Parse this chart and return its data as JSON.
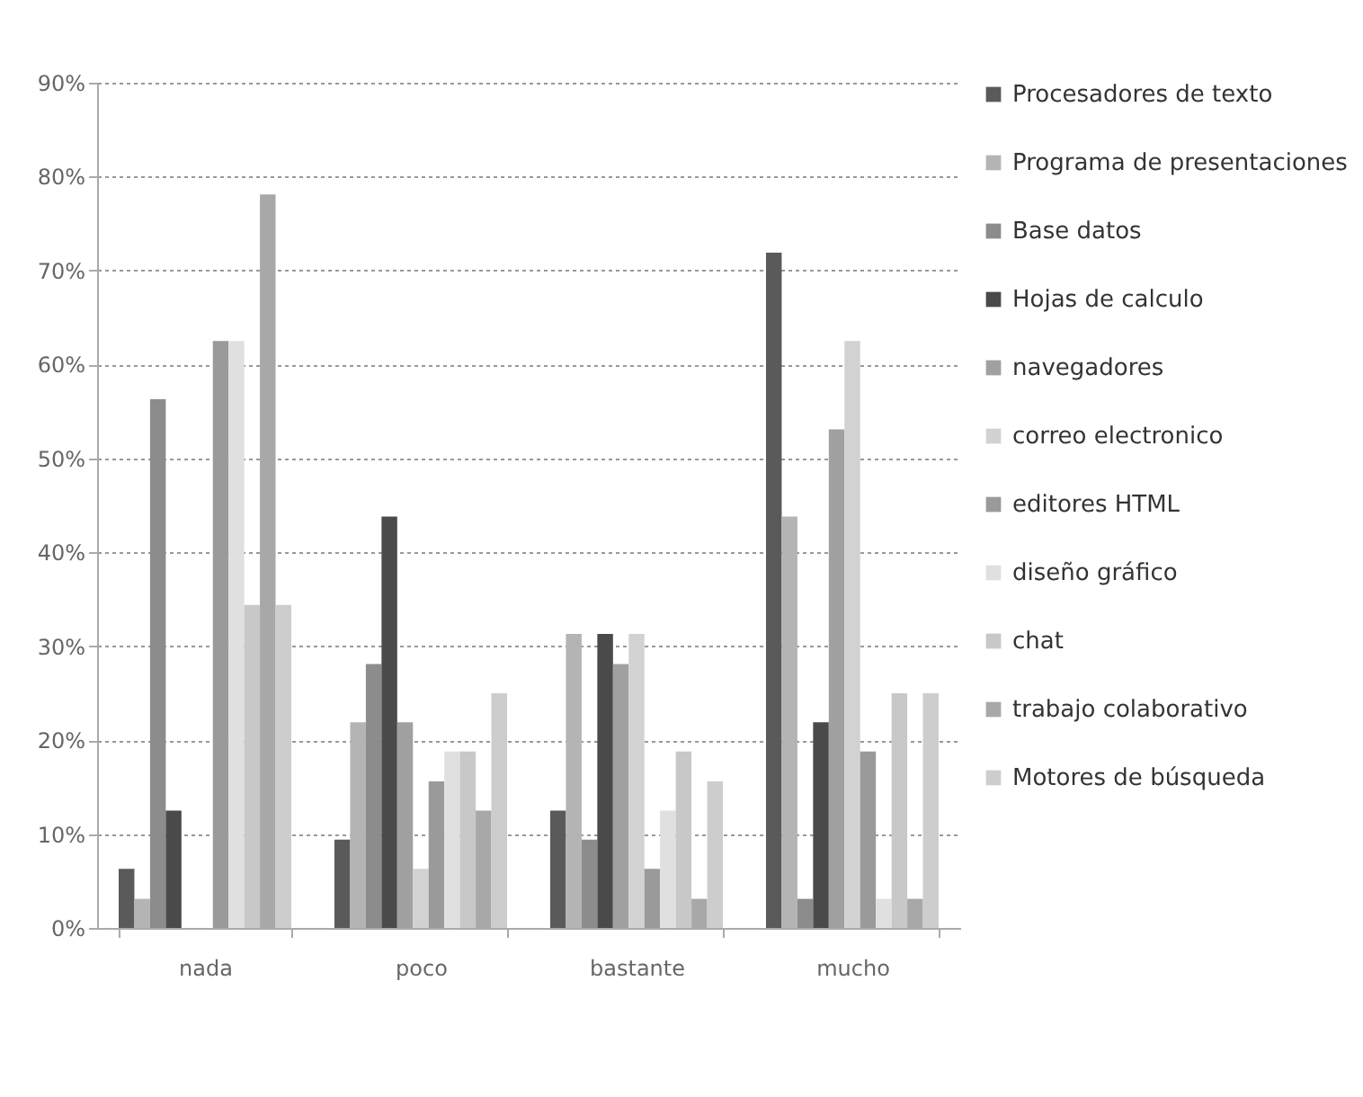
{
  "chart_data": {
    "type": "bar",
    "categories": [
      "nada",
      "poco",
      "bastante",
      "mucho"
    ],
    "series": [
      {
        "name": "Procesadores de texto",
        "color": "#5a5a5a",
        "values": [
          6.3,
          9.4,
          12.5,
          71.9
        ]
      },
      {
        "name": "Programa de presentaciones",
        "color": "#b4b4b4",
        "values": [
          3.1,
          21.9,
          31.3,
          43.8
        ]
      },
      {
        "name": "Base datos",
        "color": "#8c8c8c",
        "values": [
          56.3,
          28.1,
          9.4,
          3.1
        ]
      },
      {
        "name": "Hojas de calculo",
        "color": "#4a4a4a",
        "values": [
          12.5,
          43.8,
          31.3,
          21.9
        ]
      },
      {
        "name": "navegadores",
        "color": "#a0a0a0",
        "values": [
          0,
          21.9,
          28.1,
          53.1
        ]
      },
      {
        "name": "correo electronico",
        "color": "#d2d2d2",
        "values": [
          0,
          6.3,
          31.3,
          62.5
        ]
      },
      {
        "name": "editores HTML",
        "color": "#9a9a9a",
        "values": [
          62.5,
          15.6,
          6.3,
          18.8
        ]
      },
      {
        "name": "diseño gráfico",
        "color": "#e0e0e0",
        "values": [
          62.5,
          18.8,
          12.5,
          3.1
        ]
      },
      {
        "name": "chat",
        "color": "#c8c8c8",
        "values": [
          34.4,
          18.8,
          18.8,
          25
        ]
      },
      {
        "name": "trabajo colaborativo",
        "color": "#a8a8a8",
        "values": [
          78.1,
          12.5,
          3.1,
          3.1
        ]
      },
      {
        "name": "Motores de búsqueda",
        "color": "#cdcdcd",
        "values": [
          34.4,
          25,
          15.6,
          25
        ]
      }
    ],
    "ylim": [
      0,
      90
    ],
    "yticks": [
      {
        "value": 0,
        "label": "0%"
      },
      {
        "value": 10,
        "label": "10%"
      },
      {
        "value": 20,
        "label": "20%"
      },
      {
        "value": 30,
        "label": "30%"
      },
      {
        "value": 40,
        "label": "40%"
      },
      {
        "value": 50,
        "label": "50%"
      },
      {
        "value": 60,
        "label": "60%"
      },
      {
        "value": 70,
        "label": "70%"
      },
      {
        "value": 80,
        "label": "80%"
      },
      {
        "value": 90,
        "label": "90%"
      }
    ],
    "grid": "y",
    "legend": "right"
  }
}
